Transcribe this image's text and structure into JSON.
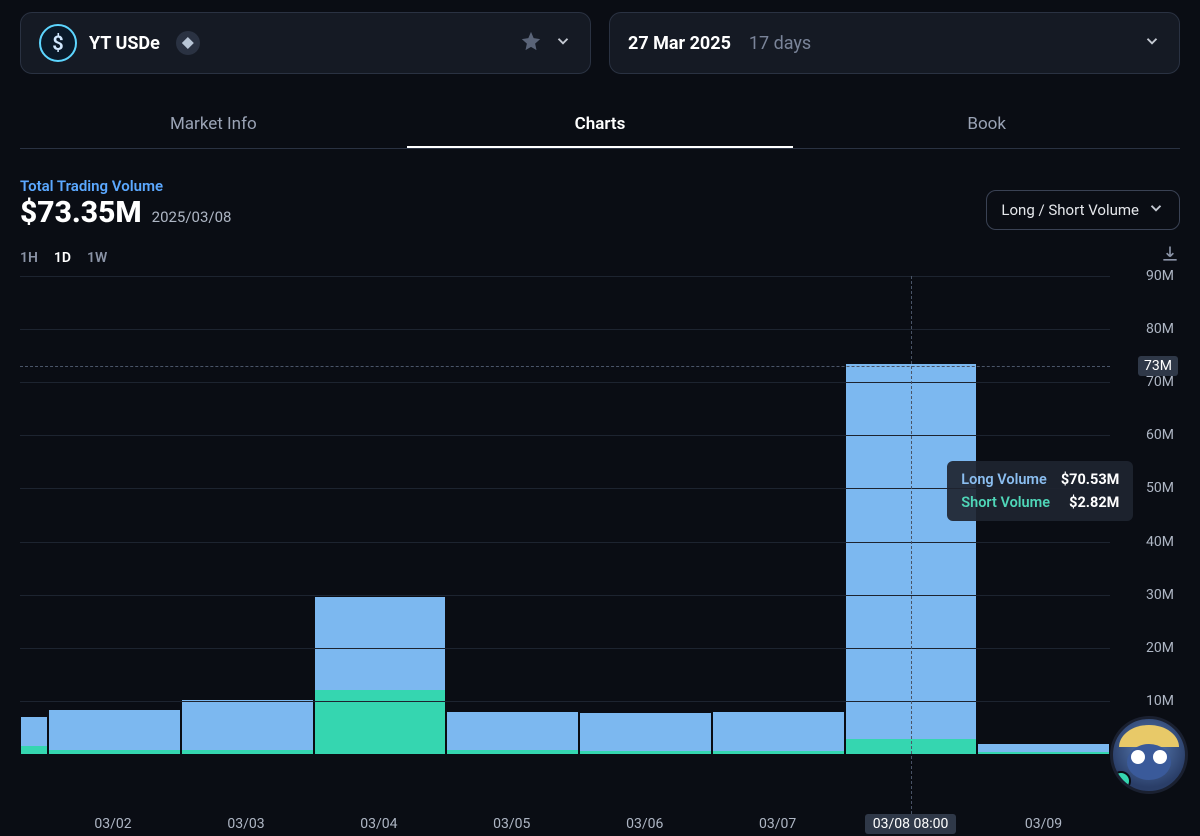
{
  "token_selector": {
    "symbol": "YT USDe",
    "icon_char": "$",
    "chain": "ethereum"
  },
  "expiry_selector": {
    "date": "27 Mar 2025",
    "remaining": "17 days"
  },
  "tabs": [
    {
      "label": "Market Info",
      "active": false
    },
    {
      "label": "Charts",
      "active": true
    },
    {
      "label": "Book",
      "active": false
    }
  ],
  "volume_header": {
    "title": "Total Trading Volume",
    "value": "$73.35M",
    "date": "2025/03/08"
  },
  "metric_dropdown": {
    "label": "Long / Short Volume"
  },
  "timeframes": [
    {
      "label": "1H",
      "active": false
    },
    {
      "label": "1D",
      "active": true
    },
    {
      "label": "1W",
      "active": false
    }
  ],
  "chart": {
    "type": "stacked-bar",
    "ylim": [
      0,
      90
    ],
    "ytick_step": 10,
    "y_unit_suffix": "M",
    "highlight_y": 73,
    "highlight_x_index": 7,
    "colors": {
      "long": "#7cb8f0",
      "short": "#35d6b0",
      "grid": "#1d2430",
      "dash": "#4a5568",
      "bg": "#0a0d14",
      "axis_text": "#aeb6c4",
      "highlight_bg": "#2f3848"
    },
    "categories": [
      "",
      "03/02",
      "03/03",
      "03/04",
      "03/05",
      "03/06",
      "03/07",
      "03/08 08:00",
      "03/09"
    ],
    "series": {
      "long": [
        5.5,
        7.5,
        9.5,
        17.5,
        7.2,
        7.2,
        7.5,
        70.53,
        1.5
      ],
      "short": [
        1.5,
        0.7,
        0.7,
        12.0,
        0.7,
        0.5,
        0.5,
        2.82,
        0.3
      ]
    }
  },
  "tooltip": {
    "long_label": "Long Volume",
    "long_value": "$70.53M",
    "short_label": "Short Volume",
    "short_value": "$2.82M"
  }
}
